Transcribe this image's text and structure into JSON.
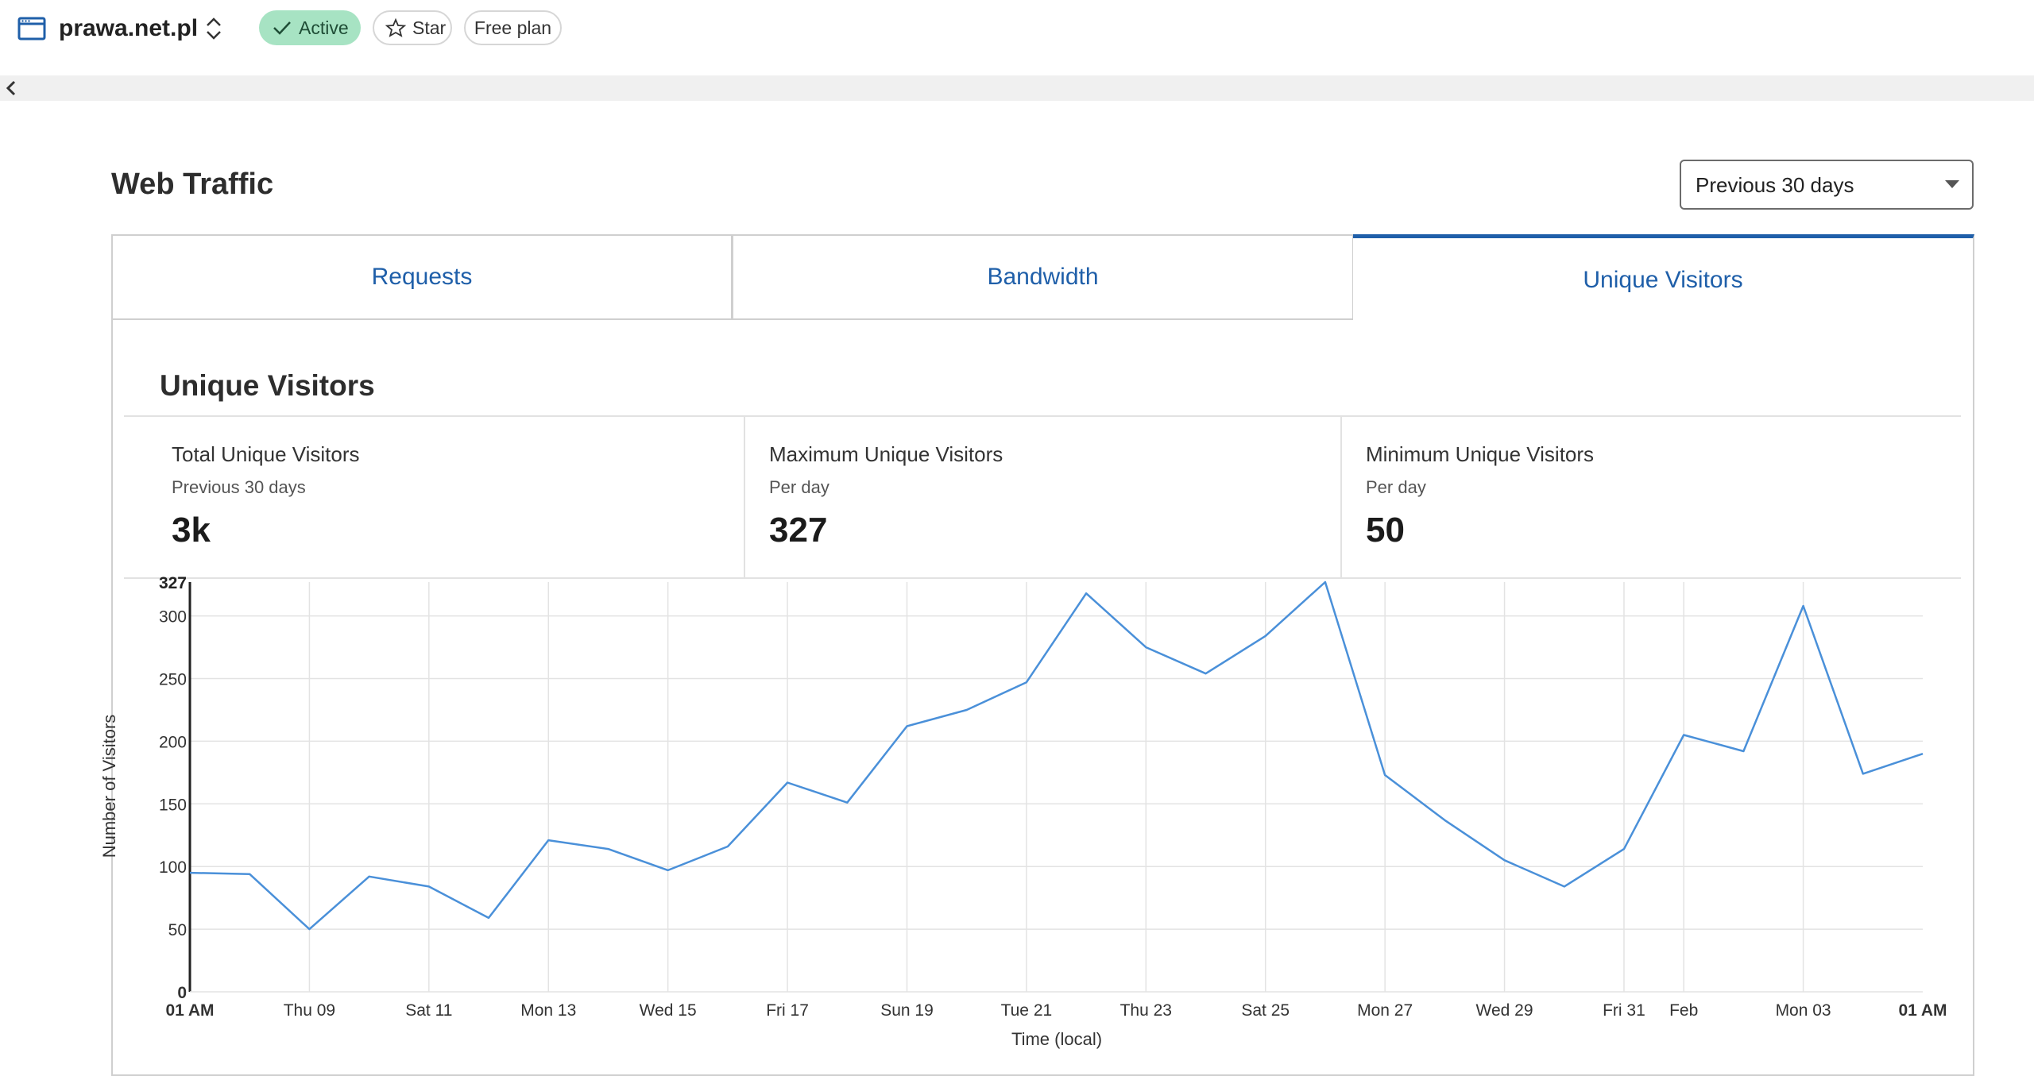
{
  "header": {
    "site_name": "prawa.net.pl",
    "status_badge": "Active",
    "star_label": "Star",
    "plan_badge": "Free plan",
    "icons": {
      "site": "browser-window-icon",
      "switch": "chevron-up-down-icon",
      "status": "check-icon",
      "star": "star-outline-icon",
      "collapse": "chevron-left-icon"
    }
  },
  "page": {
    "title": "Web Traffic",
    "range_select": {
      "value": "Previous 30 days"
    }
  },
  "tabs": [
    {
      "label": "Requests",
      "selected": false
    },
    {
      "label": "Bandwidth",
      "selected": false
    },
    {
      "label": "Unique Visitors",
      "selected": true
    }
  ],
  "section": {
    "title": "Unique Visitors",
    "stats": [
      {
        "label": "Total Unique Visitors",
        "sub": "Previous 30 days",
        "value": "3k"
      },
      {
        "label": "Maximum Unique Visitors",
        "sub": "Per day",
        "value": "327"
      },
      {
        "label": "Minimum Unique Visitors",
        "sub": "Per day",
        "value": "50"
      }
    ]
  },
  "colors": {
    "accent": "#1f5fa9",
    "line": "#4a90d9",
    "active_badge": "#a7e3c3"
  },
  "chart_data": {
    "type": "line",
    "xlabel": "Time (local)",
    "ylabel": "Number of Visitors",
    "ylim": [
      0,
      327
    ],
    "yticks": [
      "0",
      "50",
      "100",
      "150",
      "200",
      "250",
      "300"
    ],
    "ymax_label": "327",
    "x_tick_labels": [
      "01 AM",
      "Thu 09",
      "Sat 11",
      "Mon 13",
      "Wed 15",
      "Fri 17",
      "Sun 19",
      "Tue 21",
      "Thu 23",
      "Sat 25",
      "Mon 27",
      "Wed 29",
      "Fri 31",
      "Feb",
      "Mon 03",
      "01 AM"
    ],
    "grid": true,
    "series": [
      {
        "values": [
          95,
          94,
          50,
          92,
          84,
          59,
          121,
          114,
          97,
          116,
          167,
          151,
          212,
          225,
          247,
          318,
          275,
          254,
          284,
          327,
          173,
          137,
          105,
          84,
          114,
          205,
          192,
          308,
          174,
          190
        ]
      }
    ]
  }
}
